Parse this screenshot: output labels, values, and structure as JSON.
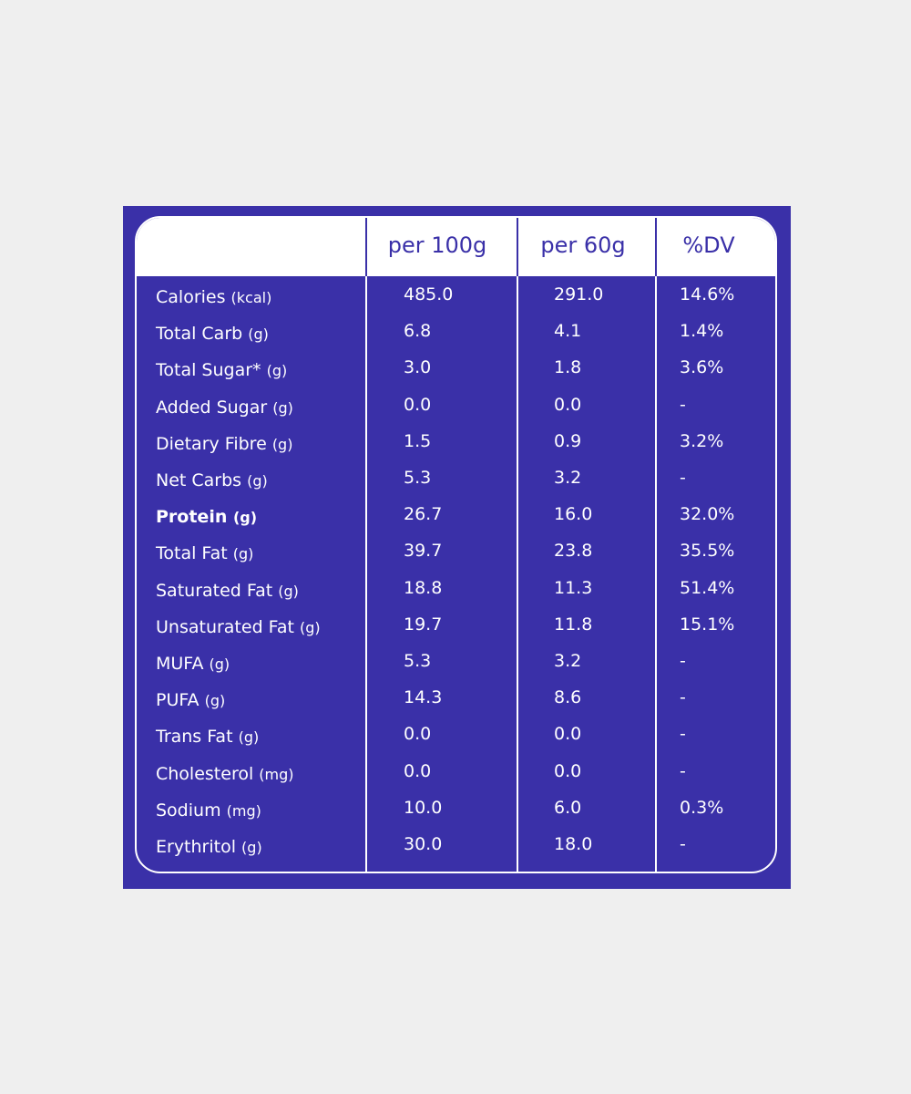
{
  "table": {
    "header": [
      "per 100g",
      "per 60g",
      "%DV"
    ],
    "rows": [
      {
        "name": "Calories",
        "unit": "(kcal)",
        "cells": [
          "485.0",
          "291.0",
          "14.6%"
        ]
      },
      {
        "name": "Total Carb",
        "unit": "(g)",
        "cells": [
          "6.8",
          "4.1",
          "1.4%"
        ]
      },
      {
        "name": "Total Sugar*",
        "unit": "(g)",
        "cells": [
          "3.0",
          "1.8",
          "3.6%"
        ]
      },
      {
        "name": "Added Sugar",
        "unit": "(g)",
        "cells": [
          "0.0",
          "0.0",
          "-"
        ]
      },
      {
        "name": "Dietary Fibre",
        "unit": "(g)",
        "cells": [
          "1.5",
          "0.9",
          "3.2%"
        ]
      },
      {
        "name": "Net Carbs",
        "unit": "(g)",
        "cells": [
          "5.3",
          "3.2",
          "-"
        ]
      },
      {
        "name": "Protein",
        "unit": "(g)",
        "cells": [
          "26.7",
          "16.0",
          "32.0%"
        ],
        "bold": true
      },
      {
        "name": "Total Fat",
        "unit": "(g)",
        "cells": [
          "39.7",
          "23.8",
          "35.5%"
        ]
      },
      {
        "name": "Saturated Fat",
        "unit": "(g)",
        "cells": [
          "18.8",
          "11.3",
          "51.4%"
        ]
      },
      {
        "name": "Unsaturated Fat",
        "unit": "(g)",
        "cells": [
          "19.7",
          "11.8",
          "15.1%"
        ]
      },
      {
        "name": "MUFA",
        "unit": "(g)",
        "cells": [
          "5.3",
          "3.2",
          "-"
        ]
      },
      {
        "name": "PUFA",
        "unit": "(g)",
        "cells": [
          "14.3",
          "8.6",
          "-"
        ]
      },
      {
        "name": "Trans Fat",
        "unit": "(g)",
        "cells": [
          "0.0",
          "0.0",
          "-"
        ]
      },
      {
        "name": "Cholesterol",
        "unit": "(mg)",
        "cells": [
          "0.0",
          "0.0",
          "-"
        ]
      },
      {
        "name": "Sodium",
        "unit": "(mg)",
        "cells": [
          "10.0",
          "6.0",
          "0.3%"
        ]
      },
      {
        "name": "Erythritol",
        "unit": "(g)",
        "cells": [
          "30.0",
          "18.0",
          "-"
        ]
      }
    ]
  }
}
